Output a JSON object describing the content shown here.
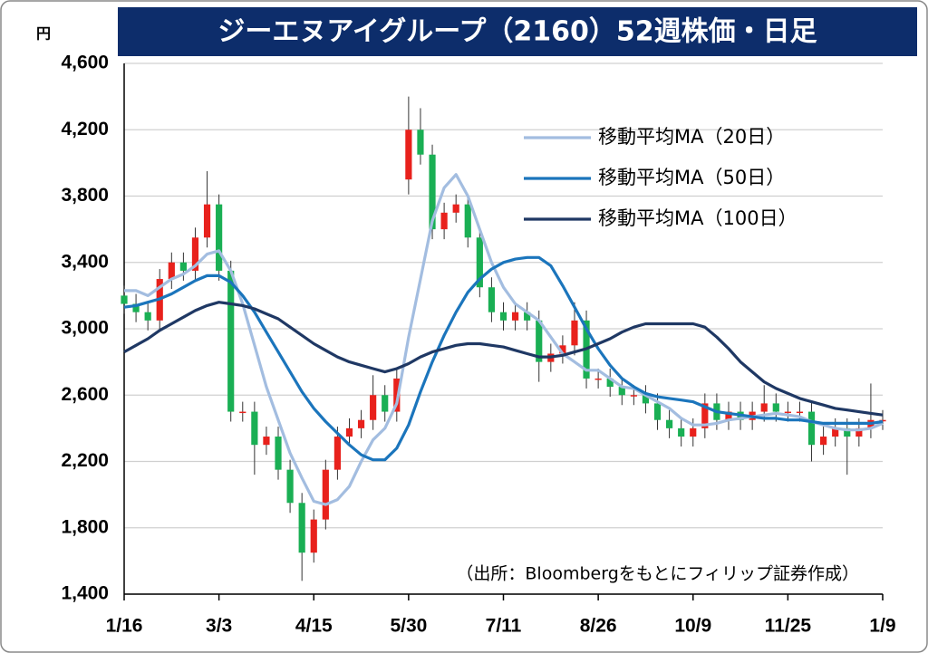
{
  "chart_data": {
    "type": "candlestick",
    "title": "ジーエヌアイグループ（2160）52週株価・日足",
    "y_label": "円",
    "annotation": "（出所：Bloombergをもとにフィリップ証券作成）",
    "categories": [
      "1/16",
      null,
      null,
      null,
      null,
      null,
      null,
      null,
      "3/3",
      null,
      null,
      null,
      null,
      null,
      null,
      null,
      "4/15",
      null,
      null,
      null,
      null,
      null,
      null,
      null,
      "5/30",
      null,
      null,
      null,
      null,
      null,
      null,
      null,
      "7/11",
      null,
      null,
      null,
      null,
      null,
      null,
      null,
      "8/26",
      null,
      null,
      null,
      null,
      null,
      null,
      null,
      "10/9",
      null,
      null,
      null,
      null,
      null,
      null,
      null,
      "11/25",
      null,
      null,
      null,
      null,
      null,
      null,
      null,
      "1/9"
    ],
    "ohlc": {
      "up_color": "#e8211c",
      "down_color": "#1aaf54",
      "open": [
        3200,
        3150,
        3100,
        3050,
        3300,
        3400,
        3350,
        3550,
        3750,
        3350,
        2500,
        2500,
        2300,
        2350,
        2150,
        1950,
        1650,
        1850,
        2150,
        2350,
        2400,
        2450,
        2600,
        2500,
        3900,
        4200,
        4050,
        3600,
        3700,
        3750,
        3550,
        3250,
        3100,
        3050,
        3100,
        3050,
        2800,
        2850,
        2900,
        3050,
        2700,
        2700,
        2650,
        2600,
        2600,
        2550,
        2450,
        2400,
        2350,
        2400,
        2550,
        2450,
        2500,
        2450,
        2500,
        2550,
        2500,
        2500,
        2500,
        2300,
        2350,
        2400,
        2350,
        2400,
        2450
      ],
      "high": [
        3260,
        3210,
        3160,
        3360,
        3460,
        3460,
        3610,
        3950,
        3810,
        3410,
        2560,
        2560,
        2410,
        2410,
        2210,
        2010,
        1910,
        2210,
        2410,
        2460,
        2510,
        2720,
        2660,
        2760,
        4400,
        4330,
        4110,
        3760,
        3810,
        3810,
        3610,
        3310,
        3160,
        3160,
        3160,
        3110,
        2910,
        2960,
        3160,
        3110,
        2760,
        2760,
        2710,
        2660,
        2660,
        2610,
        2510,
        2460,
        2460,
        2610,
        2610,
        2560,
        2560,
        2560,
        2660,
        2610,
        2560,
        2560,
        2560,
        2410,
        2460,
        2460,
        2460,
        2670,
        2510
      ],
      "low": [
        3090,
        3040,
        2990,
        2990,
        3240,
        3290,
        3290,
        3490,
        3290,
        2440,
        2440,
        2120,
        2240,
        2090,
        1890,
        1480,
        1590,
        1790,
        2090,
        2290,
        2340,
        2390,
        2440,
        2440,
        3810,
        3990,
        3540,
        3540,
        3640,
        3490,
        3190,
        3040,
        2990,
        2990,
        2990,
        2680,
        2740,
        2790,
        2840,
        2640,
        2640,
        2590,
        2540,
        2540,
        2490,
        2390,
        2340,
        2290,
        2290,
        2340,
        2390,
        2390,
        2390,
        2390,
        2440,
        2440,
        2440,
        2440,
        2200,
        2240,
        2290,
        2120,
        2290,
        2340,
        2390
      ],
      "close": [
        3150,
        3100,
        3050,
        3300,
        3400,
        3350,
        3550,
        3750,
        3350,
        2500,
        2500,
        2300,
        2350,
        2150,
        1950,
        1650,
        1850,
        2150,
        2350,
        2400,
        2450,
        2600,
        2500,
        2700,
        4200,
        4050,
        3600,
        3700,
        3750,
        3550,
        3250,
        3100,
        3050,
        3100,
        3050,
        2800,
        2850,
        2900,
        3050,
        2700,
        2700,
        2650,
        2600,
        2600,
        2550,
        2450,
        2400,
        2350,
        2400,
        2550,
        2450,
        2500,
        2450,
        2500,
        2550,
        2500,
        2500,
        2500,
        2300,
        2350,
        2400,
        2350,
        2400,
        2450,
        2450
      ]
    },
    "series": [
      {
        "name": "移動平均MA（20日）",
        "color": "#a3bde0",
        "values": [
          3230,
          3230,
          3200,
          3250,
          3300,
          3330,
          3380,
          3450,
          3470,
          3350,
          3150,
          2900,
          2650,
          2450,
          2250,
          2100,
          1960,
          1940,
          1970,
          2050,
          2200,
          2330,
          2400,
          2550,
          2950,
          3300,
          3650,
          3850,
          3930,
          3800,
          3600,
          3400,
          3250,
          3150,
          3100,
          3050,
          2950,
          2850,
          2800,
          2750,
          2750,
          2700,
          2650,
          2640,
          2600,
          2560,
          2520,
          2460,
          2420,
          2420,
          2430,
          2450,
          2460,
          2470,
          2480,
          2490,
          2480,
          2470,
          2440,
          2420,
          2400,
          2390,
          2390,
          2400,
          2430
        ]
      },
      {
        "name": "移動平均MA（50日）",
        "color": "#1b75bc",
        "values": [
          3130,
          3140,
          3160,
          3180,
          3210,
          3250,
          3290,
          3320,
          3320,
          3280,
          3200,
          3100,
          2980,
          2860,
          2740,
          2620,
          2520,
          2440,
          2370,
          2300,
          2240,
          2210,
          2210,
          2280,
          2420,
          2620,
          2800,
          2960,
          3100,
          3220,
          3300,
          3360,
          3400,
          3420,
          3430,
          3430,
          3380,
          3260,
          3130,
          3000,
          2880,
          2780,
          2700,
          2650,
          2610,
          2590,
          2580,
          2570,
          2560,
          2530,
          2500,
          2490,
          2480,
          2470,
          2460,
          2460,
          2450,
          2450,
          2440,
          2430,
          2430,
          2430,
          2430,
          2430,
          2440
        ]
      },
      {
        "name": "移動平均MA（100日）",
        "color": "#1f3864",
        "values": [
          2860,
          2900,
          2940,
          2990,
          3030,
          3070,
          3110,
          3140,
          3160,
          3150,
          3140,
          3120,
          3090,
          3060,
          3010,
          2960,
          2910,
          2870,
          2830,
          2800,
          2780,
          2760,
          2740,
          2760,
          2790,
          2830,
          2860,
          2880,
          2900,
          2910,
          2910,
          2900,
          2890,
          2870,
          2850,
          2830,
          2830,
          2840,
          2860,
          2880,
          2910,
          2940,
          2980,
          3010,
          3030,
          3030,
          3030,
          3030,
          3030,
          3010,
          2950,
          2880,
          2800,
          2740,
          2680,
          2640,
          2610,
          2580,
          2560,
          2540,
          2520,
          2510,
          2500,
          2490,
          2480
        ]
      }
    ],
    "ylim": [
      1400,
      4600
    ],
    "yticks": [
      {
        "value": 1400,
        "label": "1,400"
      },
      {
        "value": 1800,
        "label": "1,800"
      },
      {
        "value": 2200,
        "label": "2,200"
      },
      {
        "value": 2600,
        "label": "2,600"
      },
      {
        "value": 3000,
        "label": "3,000"
      },
      {
        "value": 3400,
        "label": "3,400"
      },
      {
        "value": 3800,
        "label": "3,800"
      },
      {
        "value": 4200,
        "label": "4,200"
      },
      {
        "value": 4600,
        "label": "4,600"
      }
    ],
    "grid": true,
    "legend": "upper right"
  }
}
